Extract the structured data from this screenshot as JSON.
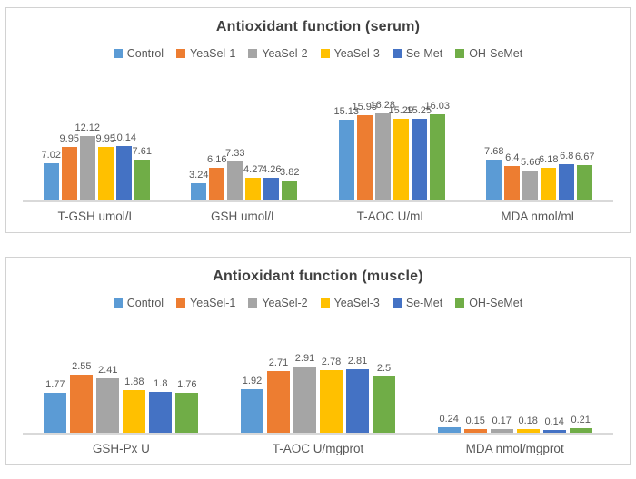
{
  "colors": {
    "panel_border": "#d2d2d2",
    "axis_line": "#d9d9d9",
    "title_text": "#404040",
    "label_text": "#595959"
  },
  "chart_data": [
    {
      "type": "bar",
      "title": "Antioxidant function (serum)",
      "legend_position": "top",
      "grid": false,
      "ylim": [
        0,
        20
      ],
      "categories": [
        "T-GSH umol/L",
        "GSH umol/L",
        "T-AOC U/mL",
        "MDA nmol/mL"
      ],
      "series": [
        {
          "name": "Control",
          "color": "#5B9BD5",
          "values": [
            7.02,
            3.24,
            15.13,
            7.68
          ]
        },
        {
          "name": "YeaSel-1",
          "color": "#ED7D31",
          "values": [
            9.95,
            6.16,
            15.95,
            6.4
          ]
        },
        {
          "name": "YeaSel-2",
          "color": "#A5A5A5",
          "values": [
            12.12,
            7.33,
            16.28,
            5.66
          ]
        },
        {
          "name": "YeaSel-3",
          "color": "#FFC000",
          "values": [
            9.95,
            4.27,
            15.29,
            6.18
          ]
        },
        {
          "name": "Se-Met",
          "color": "#4472C4",
          "values": [
            10.14,
            4.26,
            15.25,
            6.8
          ]
        },
        {
          "name": "OH-SeMet",
          "color": "#70AD47",
          "values": [
            7.61,
            3.82,
            16.03,
            6.67
          ]
        }
      ]
    },
    {
      "type": "bar",
      "title": "Antioxidant function (muscle)",
      "legend_position": "top",
      "grid": false,
      "ylim": [
        0,
        4
      ],
      "categories": [
        "GSH-Px U",
        "T-AOC U/mgprot",
        "MDA nmol/mgprot"
      ],
      "series": [
        {
          "name": "Control",
          "color": "#5B9BD5",
          "values": [
            1.77,
            1.92,
            0.24
          ]
        },
        {
          "name": "YeaSel-1",
          "color": "#ED7D31",
          "values": [
            2.55,
            2.71,
            0.15
          ]
        },
        {
          "name": "YeaSel-2",
          "color": "#A5A5A5",
          "values": [
            2.41,
            2.91,
            0.17
          ]
        },
        {
          "name": "YeaSel-3",
          "color": "#FFC000",
          "values": [
            1.88,
            2.78,
            0.18
          ]
        },
        {
          "name": "Se-Met",
          "color": "#4472C4",
          "values": [
            1.8,
            2.81,
            0.14
          ]
        },
        {
          "name": "OH-SeMet",
          "color": "#70AD47",
          "values": [
            1.76,
            2.5,
            0.21
          ]
        }
      ]
    }
  ]
}
